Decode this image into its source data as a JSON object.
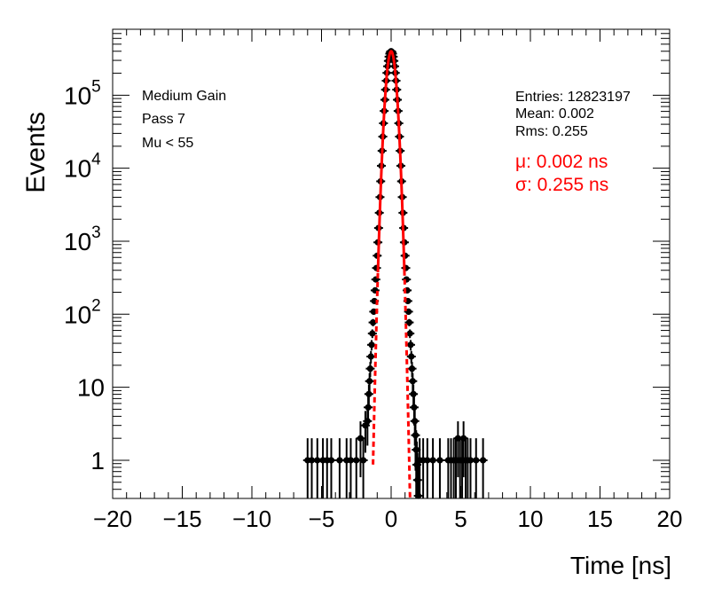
{
  "chart_data": {
    "type": "scatter",
    "ylabel": "Events",
    "xlabel": "Time [ns]",
    "xlim": [
      -20,
      20
    ],
    "ylim": [
      0.3,
      800000
    ],
    "yscale": "log",
    "x_ticks": [
      {
        "value": -20,
        "label": "−20"
      },
      {
        "value": -15,
        "label": "−15"
      },
      {
        "value": -10,
        "label": "−10"
      },
      {
        "value": -5,
        "label": "−5"
      },
      {
        "value": 0,
        "label": "0"
      },
      {
        "value": 5,
        "label": "5"
      },
      {
        "value": 10,
        "label": "10"
      },
      {
        "value": 15,
        "label": "15"
      },
      {
        "value": 20,
        "label": "20"
      }
    ],
    "y_ticks": [
      {
        "value": 1,
        "base": "1",
        "exp": ""
      },
      {
        "value": 10,
        "base": "10",
        "exp": ""
      },
      {
        "value": 100,
        "base": "10",
        "exp": "2"
      },
      {
        "value": 1000,
        "base": "10",
        "exp": "3"
      },
      {
        "value": 10000,
        "base": "10",
        "exp": "4"
      },
      {
        "value": 100000,
        "base": "10",
        "exp": "5"
      }
    ],
    "annotations_left": [
      "Medium Gain",
      "Pass 7",
      "Mu < 55"
    ],
    "stats": [
      "Entries: 12823197",
      "Mean: 0.002",
      "Rms: 0.255"
    ],
    "fit_labels": [
      "μ: 0.002 ns",
      "σ: 0.255 ns"
    ],
    "fit": {
      "mean": 0.002,
      "sigma": 0.255,
      "amplitude": 400000,
      "range": [
        -1.3,
        1.45
      ],
      "color": "#ff0000"
    },
    "core": {
      "amplitude": 400000,
      "sigma": 0.255,
      "tail_sigma": 0.44,
      "tail_fraction": 0.015,
      "x_min": -1.7,
      "x_max": 1.95,
      "step": 0.05
    },
    "tail_points": [
      {
        "x": -6.0,
        "y": 1
      },
      {
        "x": -5.7,
        "y": 1
      },
      {
        "x": -5.3,
        "y": 1
      },
      {
        "x": -4.9,
        "y": 1
      },
      {
        "x": -4.6,
        "y": 1
      },
      {
        "x": -4.3,
        "y": 1
      },
      {
        "x": -3.7,
        "y": 1
      },
      {
        "x": -3.2,
        "y": 1
      },
      {
        "x": -2.9,
        "y": 1
      },
      {
        "x": -2.5,
        "y": 1
      },
      {
        "x": -2.2,
        "y": 2
      },
      {
        "x": -2.0,
        "y": 1
      },
      {
        "x": -1.85,
        "y": 3
      },
      {
        "x": 2.05,
        "y": 1
      },
      {
        "x": 2.3,
        "y": 1
      },
      {
        "x": 2.6,
        "y": 1
      },
      {
        "x": 3.0,
        "y": 1
      },
      {
        "x": 3.5,
        "y": 1
      },
      {
        "x": 4.1,
        "y": 1
      },
      {
        "x": 4.3,
        "y": 1
      },
      {
        "x": 4.5,
        "y": 1
      },
      {
        "x": 4.65,
        "y": 1
      },
      {
        "x": 4.8,
        "y": 2
      },
      {
        "x": 4.95,
        "y": 1
      },
      {
        "x": 5.1,
        "y": 1
      },
      {
        "x": 5.2,
        "y": 2
      },
      {
        "x": 5.35,
        "y": 1
      },
      {
        "x": 5.5,
        "y": 1
      },
      {
        "x": 5.7,
        "y": 1
      },
      {
        "x": 6.1,
        "y": 1
      },
      {
        "x": 6.6,
        "y": 1
      }
    ],
    "colors": {
      "data": "#000000",
      "fit": "#ff0000",
      "axis": "#000000",
      "background": "#ffffff"
    }
  }
}
